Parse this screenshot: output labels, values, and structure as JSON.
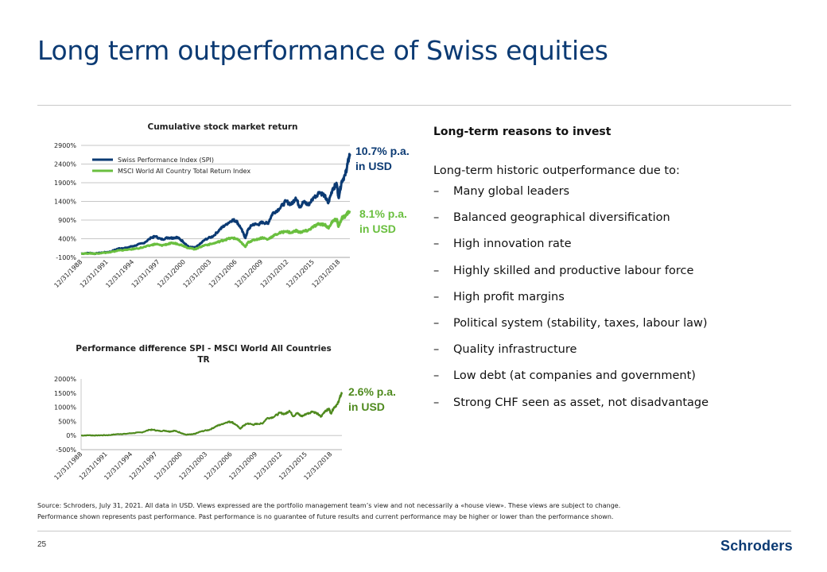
{
  "title": "Long term outperformance of Swiss equities",
  "right_panel": {
    "heading": "Long-term reasons to invest",
    "intro": "Long-term historic outperformance due to:",
    "bullet_marker": "–",
    "bullets": [
      "Many global leaders",
      "Balanced geographical diversification",
      "High innovation rate",
      "Highly skilled and productive labour force",
      "High profit margins",
      "Political system (stability, taxes, labour law)",
      "Quality infrastructure",
      "Low debt (at companies and government)",
      "Strong CHF seen as asset, not disadvantage"
    ]
  },
  "annotations": {
    "spi": {
      "line1": "10.7% p.a.",
      "line2": "in USD",
      "color": "#0b3a73"
    },
    "msci": {
      "line1": "8.1% p.a.",
      "line2": "in USD",
      "color": "#6abf3f"
    },
    "diff": {
      "line1": "2.6% p.a.",
      "line2": "in USD",
      "color": "#4f8a1e"
    }
  },
  "source": {
    "line1": "Source: Schroders, July 31, 2021. All data in USD. Views expressed are the portfolio management team’s view and not necessarily a «house view». These views are subject to change.",
    "line2": "Performance shown represents past performance. Past performance is no guarantee of future results and current performance may be higher or lower than the performance shown."
  },
  "page_number": "25",
  "logo_text": "Schroders",
  "chart_data": [
    {
      "type": "line",
      "title": "Cumulative stock market return",
      "xlabel": "",
      "ylabel": "",
      "x_tick_labels": [
        "12/31/1988",
        "12/31/1991",
        "12/31/1994",
        "12/31/1997",
        "12/31/2000",
        "12/31/2003",
        "12/31/2006",
        "12/31/2009",
        "12/31/2012",
        "12/31/2015",
        "12/31/2018"
      ],
      "y_tick_labels": [
        "-100%",
        "400%",
        "900%",
        "1400%",
        "1900%",
        "2400%",
        "2900%"
      ],
      "y_ticks": [
        -100,
        400,
        900,
        1400,
        1900,
        2400,
        2900
      ],
      "ylim": [
        -100,
        2900
      ],
      "xlim": [
        1988.95,
        2021.58
      ],
      "grid": true,
      "legend_position": "top-left",
      "series": [
        {
          "name": "Swiss Performance Index (SPI)",
          "color": "#0b3a73",
          "x": [
            1988.95,
            1990.0,
            1990.6,
            1991.5,
            1992.5,
            1993.5,
            1994.5,
            1995.5,
            1996.5,
            1997.5,
            1998.0,
            1998.7,
            1999.5,
            2000.0,
            2000.6,
            2001.3,
            2002.0,
            2002.8,
            2003.2,
            2004.0,
            2005.0,
            2005.8,
            2006.5,
            2007.3,
            2007.8,
            2008.3,
            2008.9,
            2009.2,
            2009.8,
            2010.5,
            2011.0,
            2011.6,
            2012.2,
            2013.0,
            2013.8,
            2014.5,
            2015.0,
            2015.5,
            2016.0,
            2016.5,
            2017.2,
            2017.9,
            2018.5,
            2018.95,
            2019.5,
            2020.0,
            2020.2,
            2020.6,
            2021.0,
            2021.3,
            2021.58
          ],
          "values": [
            0,
            20,
            0,
            30,
            50,
            140,
            160,
            220,
            280,
            430,
            460,
            380,
            430,
            420,
            440,
            330,
            180,
            160,
            220,
            380,
            470,
            650,
            780,
            900,
            880,
            700,
            420,
            640,
            790,
            780,
            850,
            800,
            1080,
            1200,
            1400,
            1320,
            1500,
            1250,
            1400,
            1300,
            1500,
            1650,
            1560,
            1350,
            1750,
            1850,
            1500,
            1950,
            2100,
            2400,
            2670
          ]
        },
        {
          "name": "MSCI World All Country Total Return Index",
          "color": "#6abf3f",
          "x": [
            1988.95,
            1990.0,
            1990.6,
            1991.5,
            1992.5,
            1993.5,
            1994.5,
            1995.5,
            1996.5,
            1997.5,
            1998.0,
            1998.7,
            1999.5,
            2000.0,
            2000.6,
            2001.3,
            2002.0,
            2002.8,
            2003.2,
            2004.0,
            2005.0,
            2005.8,
            2006.5,
            2007.3,
            2007.8,
            2008.3,
            2008.9,
            2009.2,
            2009.8,
            2010.5,
            2011.0,
            2011.6,
            2012.2,
            2013.0,
            2013.8,
            2014.5,
            2015.0,
            2015.5,
            2016.0,
            2016.5,
            2017.2,
            2017.9,
            2018.5,
            2018.95,
            2019.5,
            2020.0,
            2020.2,
            2020.6,
            2021.0,
            2021.3,
            2021.58
          ],
          "values": [
            0,
            10,
            0,
            20,
            35,
            90,
            100,
            130,
            170,
            230,
            260,
            220,
            260,
            280,
            270,
            220,
            150,
            120,
            160,
            230,
            270,
            330,
            380,
            420,
            400,
            320,
            180,
            300,
            360,
            400,
            430,
            380,
            470,
            550,
            600,
            560,
            620,
            570,
            600,
            620,
            730,
            800,
            780,
            690,
            870,
            920,
            720,
            950,
            1000,
            1080,
            1150
          ]
        }
      ]
    },
    {
      "type": "line",
      "title": "Performance difference SPI - MSCI World All Countries TR",
      "xlabel": "",
      "ylabel": "",
      "x_tick_labels": [
        "12/31/1988",
        "12/31/1991",
        "12/31/1994",
        "12/31/1997",
        "12/31/2000",
        "12/31/2003",
        "12/31/2006",
        "12/31/2009",
        "12/31/2012",
        "12/31/2015",
        "12/31/2018"
      ],
      "y_tick_labels": [
        "-500%",
        "0%",
        "500%",
        "1000%",
        "1500%",
        "2000%"
      ],
      "y_ticks": [
        -500,
        0,
        500,
        1000,
        1500,
        2000
      ],
      "ylim": [
        -500,
        2000
      ],
      "xlim": [
        1988.95,
        2021.58
      ],
      "grid": false,
      "series": [
        {
          "name": "Performance difference SPI - MSCI World All Countries TR",
          "color": "#4f8a1e",
          "x": [
            1988.95,
            1990.0,
            1990.6,
            1991.5,
            1992.5,
            1993.5,
            1994.5,
            1995.5,
            1996.5,
            1997.5,
            1998.0,
            1998.7,
            1999.5,
            2000.0,
            2000.6,
            2001.3,
            2002.0,
            2002.8,
            2003.2,
            2004.0,
            2005.0,
            2005.8,
            2006.5,
            2007.3,
            2007.8,
            2008.3,
            2008.9,
            2009.2,
            2009.8,
            2010.5,
            2011.0,
            2011.6,
            2012.2,
            2013.0,
            2013.8,
            2014.5,
            2015.0,
            2015.5,
            2016.0,
            2016.5,
            2017.2,
            2017.9,
            2018.5,
            2018.95,
            2019.5,
            2020.0,
            2020.2,
            2020.6,
            2021.0,
            2021.3,
            2021.58
          ],
          "values": [
            0,
            10,
            0,
            10,
            15,
            50,
            60,
            90,
            110,
            200,
            200,
            160,
            170,
            140,
            170,
            110,
            30,
            40,
            60,
            150,
            200,
            320,
            400,
            480,
            480,
            380,
            240,
            340,
            430,
            380,
            420,
            420,
            610,
            650,
            800,
            760,
            880,
            680,
            800,
            680,
            770,
            850,
            780,
            660,
            880,
            930,
            780,
            1000,
            1100,
            1320,
            1520
          ]
        }
      ]
    }
  ]
}
